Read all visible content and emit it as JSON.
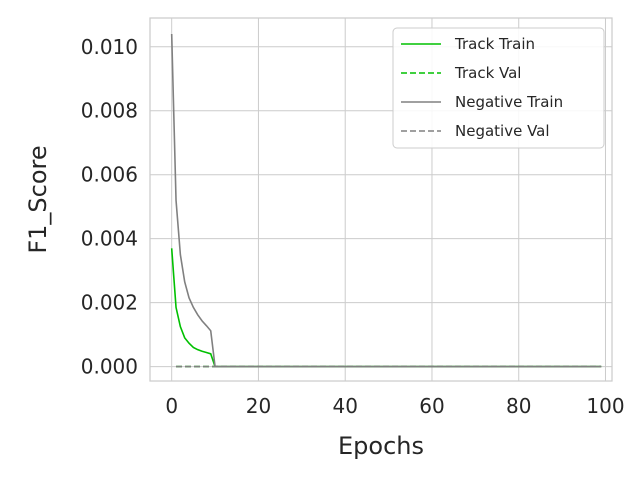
{
  "chart_data": {
    "type": "line",
    "xlabel": "Epochs",
    "ylabel": "F1_Score",
    "xlim": [
      -5,
      101.5
    ],
    "ylim": [
      -0.00045,
      0.0109
    ],
    "xticks": [
      0,
      20,
      40,
      60,
      80,
      100
    ],
    "yticks": [
      0.0,
      0.002,
      0.004,
      0.006,
      0.008,
      0.01
    ],
    "ytick_labels": [
      "0.000",
      "0.002",
      "0.004",
      "0.006",
      "0.008",
      "0.010"
    ],
    "grid": true,
    "legend_position": "top-right",
    "series": [
      {
        "name": "Track Train",
        "color": "#00c000",
        "style": "solid",
        "x": [
          0,
          1,
          2,
          3,
          4,
          5,
          6,
          7,
          8,
          9,
          10,
          99
        ],
        "y": [
          0.0037,
          0.00185,
          0.00125,
          0.0009,
          0.00073,
          0.0006,
          0.00053,
          0.00048,
          0.00044,
          0.0004,
          0.0,
          0.0
        ]
      },
      {
        "name": "Track Val",
        "color": "#00c000",
        "style": "dashed",
        "x": [
          1,
          99
        ],
        "y": [
          0.0,
          0.0
        ]
      },
      {
        "name": "Negative Train",
        "color": "#808080",
        "style": "solid",
        "x": [
          0,
          1,
          2,
          3,
          4,
          5,
          6,
          7,
          8,
          9,
          10,
          99
        ],
        "y": [
          0.0104,
          0.0052,
          0.0035,
          0.00265,
          0.00215,
          0.00185,
          0.00162,
          0.00143,
          0.00128,
          0.00112,
          0.0,
          0.0
        ]
      },
      {
        "name": "Negative Val",
        "color": "#808080",
        "style": "dashed",
        "x": [
          1,
          99
        ],
        "y": [
          0.0,
          0.0
        ]
      }
    ]
  }
}
